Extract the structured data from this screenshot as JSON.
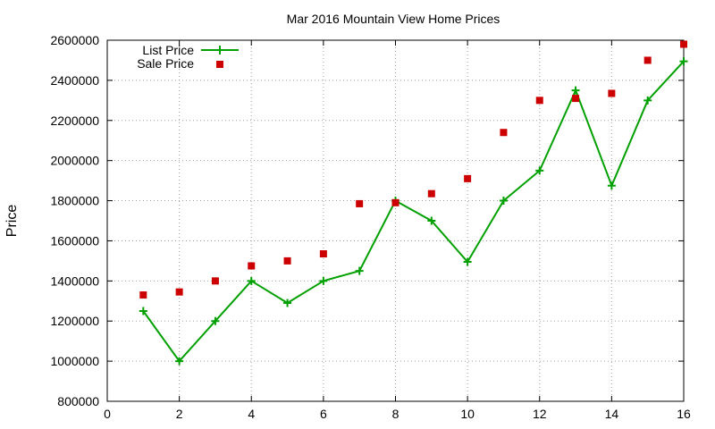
{
  "chart_data": {
    "type": "line",
    "title": "Mar 2016 Mountain View Home Prices",
    "xlabel": "",
    "ylabel": "Price",
    "xlim": [
      0,
      16
    ],
    "ylim": [
      800000,
      2600000
    ],
    "x_ticks": [
      0,
      2,
      4,
      6,
      8,
      10,
      12,
      14,
      16
    ],
    "y_ticks": [
      800000,
      1000000,
      1200000,
      1400000,
      1600000,
      1800000,
      2000000,
      2200000,
      2400000,
      2600000
    ],
    "x_tick_labels": [
      "0",
      "2",
      "4",
      "6",
      "8",
      "10",
      "12",
      "14",
      "16"
    ],
    "y_tick_labels": [
      "800000",
      "1000000",
      "1200000",
      "1400000",
      "1600000",
      "1800000",
      "2000000",
      "2200000",
      "2400000",
      "2600000"
    ],
    "grid": true,
    "legend_position": "top-left",
    "series": [
      {
        "name": "List Price",
        "style": "line-with-plus-markers",
        "color": "#00a000",
        "x": [
          1,
          2,
          3,
          4,
          5,
          6,
          7,
          8,
          9,
          10,
          11,
          12,
          13,
          14,
          15,
          16
        ],
        "values": [
          1250000,
          1000000,
          1200000,
          1400000,
          1290000,
          1400000,
          1450000,
          1800000,
          1700000,
          1495000,
          1800000,
          1950000,
          2350000,
          1875000,
          2300000,
          2495000
        ]
      },
      {
        "name": "Sale Price",
        "style": "square-markers",
        "color": "#cc0000",
        "x": [
          1,
          2,
          3,
          4,
          5,
          6,
          7,
          8,
          9,
          10,
          11,
          12,
          13,
          14,
          15,
          16
        ],
        "values": [
          1330000,
          1345000,
          1400000,
          1475000,
          1500000,
          1535000,
          1785000,
          1790000,
          1835000,
          1910000,
          2140000,
          2300000,
          2310000,
          2335000,
          2500000,
          2580000
        ]
      }
    ]
  }
}
